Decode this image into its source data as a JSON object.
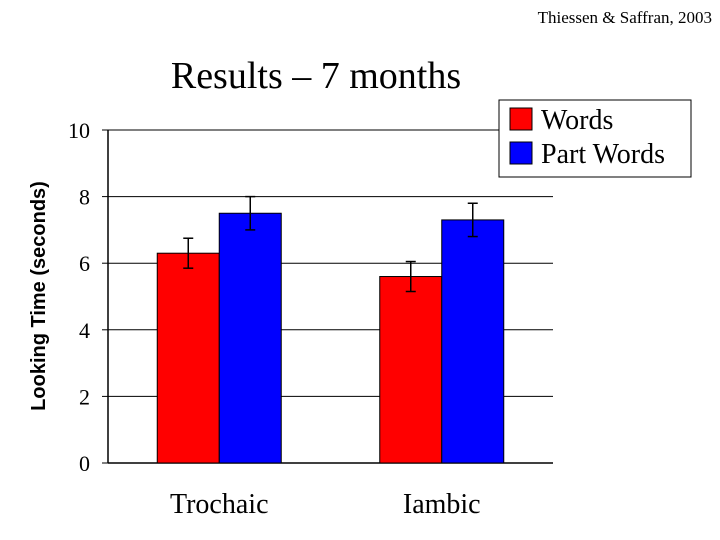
{
  "citation": "Thiessen & Saffran, 2003",
  "colors": {
    "words": "#ff0000",
    "part_words": "#0000ff"
  },
  "chart_data": {
    "type": "bar",
    "title": "Results – 7 months",
    "xlabel": "",
    "ylabel": "Looking Time (seconds)",
    "categories": [
      "Trochaic",
      "Iambic"
    ],
    "ylim": [
      0,
      10
    ],
    "yticks": [
      0,
      2,
      4,
      6,
      8,
      10
    ],
    "grid": true,
    "legend_position": "top-right",
    "series": [
      {
        "name": "Words",
        "color": "#ff0000",
        "values": [
          6.3,
          5.6
        ],
        "errors": [
          0.45,
          0.45
        ]
      },
      {
        "name": "Part Words",
        "color": "#0000ff",
        "values": [
          7.5,
          7.3
        ],
        "errors": [
          0.5,
          0.5
        ]
      }
    ]
  }
}
